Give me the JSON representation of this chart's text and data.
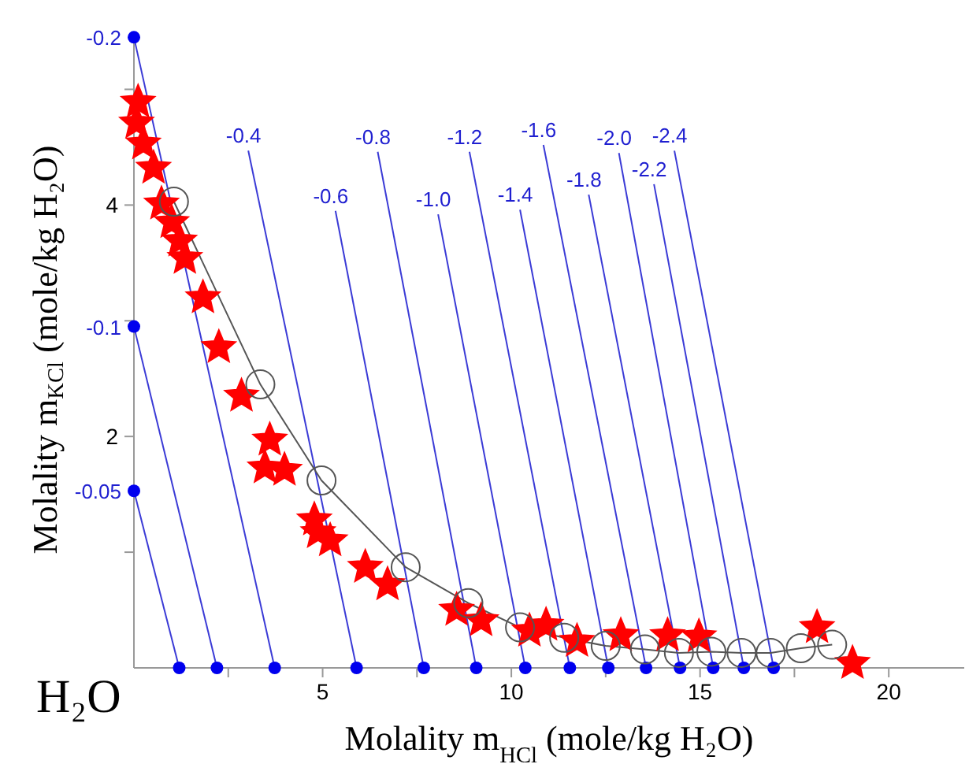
{
  "chart_data": {
    "type": "line",
    "xlabel": "Molality m$_{HCl}$ (mole/kg H₂O)",
    "ylabel": "Molality m$_{KCl}$ (mole/kg H₂O)",
    "xlim": [
      0,
      22
    ],
    "ylim": [
      0,
      5.5
    ],
    "xticks": [
      {
        "value": 2.5,
        "label": null
      },
      5,
      {
        "value": 7.5,
        "label": null
      },
      10,
      {
        "value": 12.5,
        "label": null
      },
      15,
      {
        "value": 17.5,
        "label": null
      },
      20
    ],
    "yticks": [
      {
        "value": 1,
        "label": null
      },
      2,
      {
        "value": 3,
        "label": null
      },
      4,
      {
        "value": 5,
        "label": null
      }
    ],
    "annotations": [
      "H₂O"
    ],
    "series": [
      {
        "name": "-0.05",
        "marker": "circle",
        "color": "#3b3bd6",
        "x": [
          0,
          1.2
        ],
        "values": [
          1.53,
          0
        ]
      },
      {
        "name": "-0.1",
        "marker": "circle",
        "color": "#3b3bd6",
        "x": [
          0,
          2.2
        ],
        "values": [
          2.95,
          0
        ]
      },
      {
        "name": "-0.2",
        "marker": "circle",
        "color": "#3b3bd6",
        "x": [
          0,
          3.73
        ],
        "values": [
          5.45,
          0
        ]
      },
      {
        "name": "-0.4",
        "marker": "circle",
        "color": "#3b3bd6",
        "x": [
          3.03,
          5.9
        ],
        "values": [
          4.47,
          0
        ]
      },
      {
        "name": "-0.6",
        "marker": "circle",
        "color": "#3b3bd6",
        "x": [
          5.34,
          7.68
        ],
        "values": [
          3.95,
          0
        ]
      },
      {
        "name": "-0.8",
        "marker": "circle",
        "color": "#3b3bd6",
        "x": [
          6.46,
          9.07
        ],
        "values": [
          4.46,
          0
        ]
      },
      {
        "name": "-1.0",
        "marker": "circle",
        "color": "#3b3bd6",
        "x": [
          8.06,
          10.37
        ],
        "values": [
          3.92,
          0
        ]
      },
      {
        "name": "-1.2",
        "marker": "circle",
        "color": "#3b3bd6",
        "x": [
          8.89,
          11.55
        ],
        "values": [
          4.46,
          0
        ]
      },
      {
        "name": "-1.4",
        "marker": "circle",
        "color": "#3b3bd6",
        "x": [
          10.23,
          12.57
        ],
        "values": [
          3.96,
          0
        ]
      },
      {
        "name": "-1.6",
        "marker": "circle",
        "color": "#3b3bd6",
        "x": [
          10.85,
          13.57
        ],
        "values": [
          4.52,
          0
        ]
      },
      {
        "name": "-1.8",
        "marker": "circle",
        "color": "#3b3bd6",
        "x": [
          12.05,
          14.47
        ],
        "values": [
          4.09,
          0
        ]
      },
      {
        "name": "-2.0",
        "marker": "circle",
        "color": "#3b3bd6",
        "x": [
          12.85,
          15.35
        ],
        "values": [
          4.45,
          0
        ]
      },
      {
        "name": "-2.2",
        "marker": "circle",
        "color": "#3b3bd6",
        "x": [
          13.78,
          16.16
        ],
        "values": [
          4.18,
          0
        ]
      },
      {
        "name": "-2.4",
        "marker": "circle",
        "color": "#3b3bd6",
        "x": [
          14.32,
          16.95
        ],
        "values": [
          4.47,
          0
        ]
      },
      {
        "color": "#555555",
        "marker": "circle",
        "x": [
          1.06,
          3.35,
          4.97,
          7.2,
          8.86,
          10.23,
          11.4,
          12.5,
          13.54,
          14.44,
          15.3,
          16.1,
          16.87,
          17.67,
          18.5
        ],
        "values": [
          4.03,
          2.45,
          1.62,
          0.87,
          0.56,
          0.35,
          0.26,
          0.19,
          0.16,
          0.13,
          0.14,
          0.13,
          0.13,
          0.17,
          0.2
        ]
      },
      {
        "type": "scatter",
        "color": "#ff0000",
        "marker": "star",
        "x": [
          0.11,
          0.07,
          0.25,
          0.52,
          0.73,
          1.0,
          1.21,
          1.35,
          1.83,
          2.25,
          2.85,
          3.6,
          3.47,
          3.99,
          4.78,
          4.88,
          5.2,
          6.13,
          6.72,
          8.55,
          9.2,
          10.48,
          10.92,
          11.74,
          12.9,
          14.14,
          14.97,
          18.1,
          19.04
        ],
        "values": [
          4.89,
          4.71,
          4.53,
          4.32,
          4.01,
          3.85,
          3.69,
          3.54,
          3.2,
          2.77,
          2.35,
          1.97,
          1.73,
          1.71,
          1.28,
          1.17,
          1.1,
          0.87,
          0.72,
          0.5,
          0.41,
          0.32,
          0.37,
          0.23,
          0.28,
          0.28,
          0.27,
          0.35,
          0.04
        ]
      }
    ]
  }
}
